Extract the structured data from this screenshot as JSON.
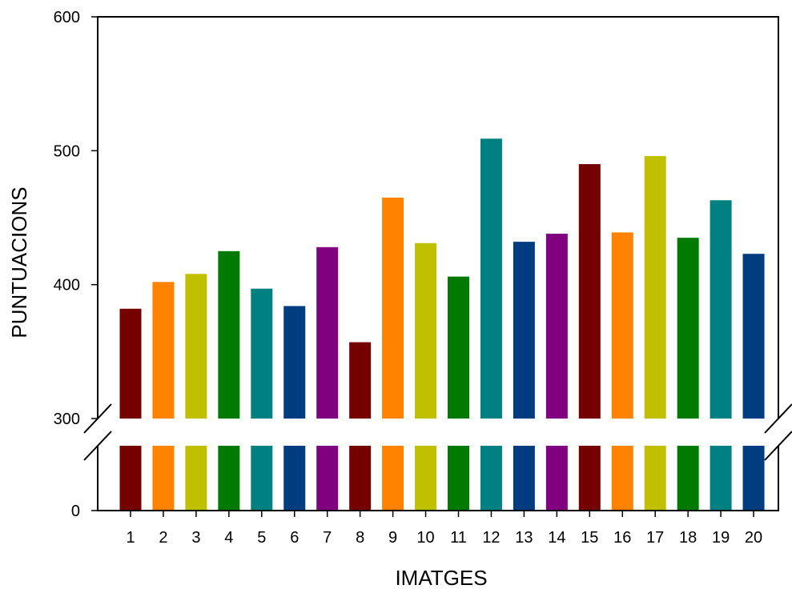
{
  "chart_data": {
    "type": "bar",
    "title": "",
    "xlabel": "IMATGES",
    "ylabel": "PUNTUACIONS",
    "categories": [
      "1",
      "2",
      "3",
      "4",
      "5",
      "6",
      "7",
      "8",
      "9",
      "10",
      "11",
      "12",
      "13",
      "14",
      "15",
      "16",
      "17",
      "18",
      "19",
      "20"
    ],
    "values": [
      382,
      402,
      408,
      425,
      397,
      384,
      428,
      357,
      465,
      431,
      406,
      509,
      432,
      438,
      490,
      439,
      496,
      435,
      463,
      423
    ],
    "bar_colors": [
      "#750000",
      "#ff8200",
      "#c0c000",
      "#007a00",
      "#008080",
      "#003c80",
      "#800080",
      "#750000",
      "#ff8200",
      "#c0c000",
      "#007a00",
      "#008080",
      "#003c80",
      "#800080",
      "#750000",
      "#ff8200",
      "#c0c000",
      "#007a00",
      "#008080",
      "#003c80"
    ],
    "ylim": [
      0,
      600
    ],
    "axis_break": [
      0,
      300
    ],
    "yticks": [
      0,
      300,
      400,
      500,
      600
    ],
    "grid": false,
    "legend": "none"
  }
}
